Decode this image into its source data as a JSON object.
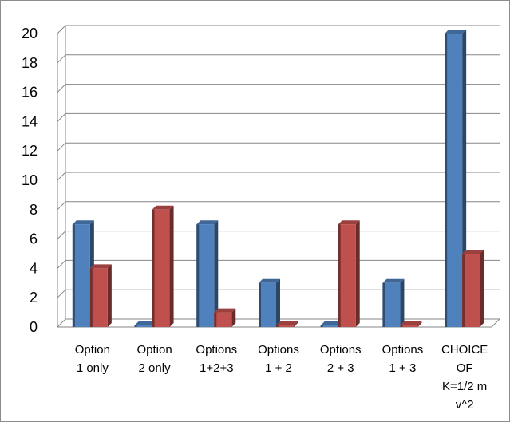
{
  "chart_data": {
    "type": "bar",
    "categories": [
      [
        "Option",
        "1 only"
      ],
      [
        "Option",
        "2 only"
      ],
      [
        "Options",
        "1+2+3"
      ],
      [
        "Options",
        "1 + 2"
      ],
      [
        "Options",
        "2 + 3"
      ],
      [
        "Options",
        "1 + 3"
      ],
      [
        "CHOICE",
        "OF",
        "K=1/2 m",
        "v^2"
      ]
    ],
    "series": [
      {
        "values": [
          7,
          0,
          7,
          3,
          0,
          3,
          20
        ],
        "color": "#4f81bd"
      },
      {
        "values": [
          4,
          8,
          1,
          0,
          7,
          0,
          5
        ],
        "color": "#c0504d"
      }
    ],
    "yticks": [
      0,
      2,
      4,
      6,
      8,
      10,
      12,
      14,
      16,
      18,
      20
    ],
    "ylim": [
      0,
      20
    ],
    "grid": true,
    "legend": "none",
    "style": "3d-clustered-bar"
  }
}
